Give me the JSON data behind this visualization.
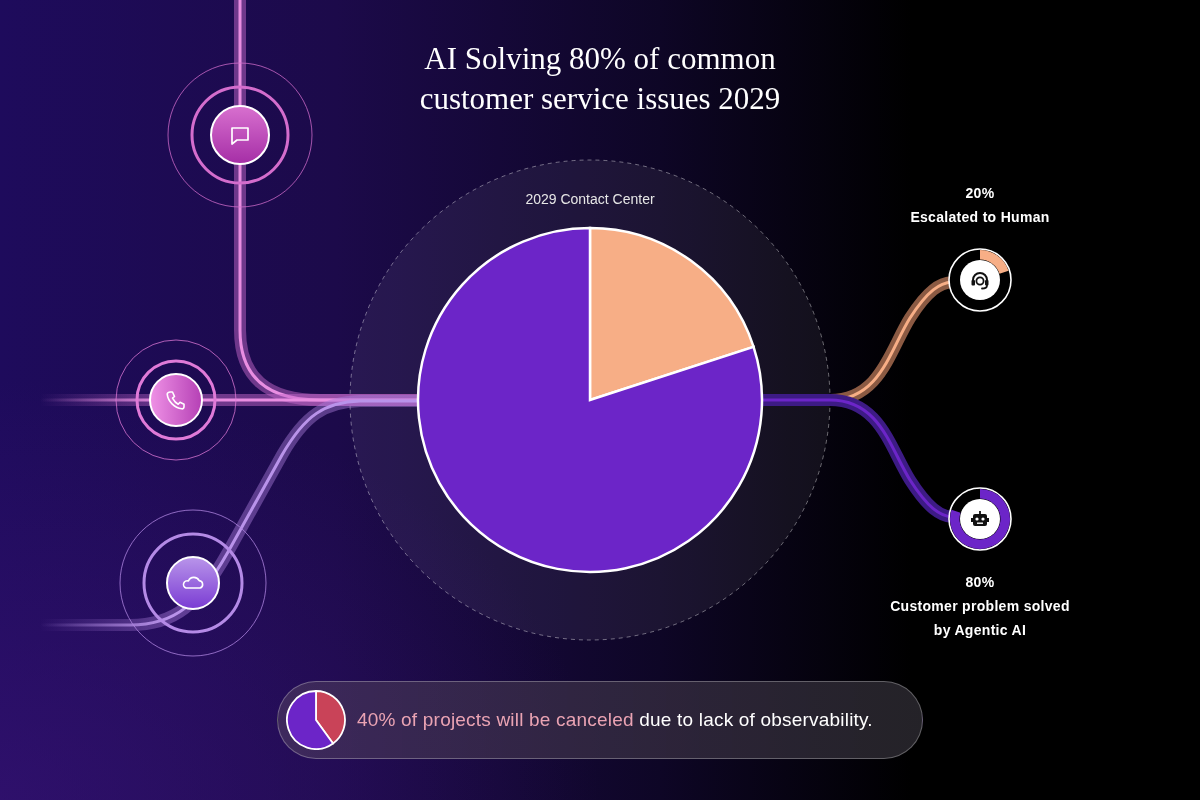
{
  "chart_data": [
    {
      "type": "pie",
      "title": "AI Solving 80% of common customer service issues 2029",
      "subtitle": "2029 Contact Center",
      "categories": [
        null,
        null
      ],
      "values": [
        20,
        80
      ],
      "colors": [
        "#f7ae86",
        "#6c25c8"
      ],
      "annotations": [
        "20%",
        "Escalated to Human",
        "80%",
        "Customer problem solved by Agentic AI"
      ]
    },
    {
      "type": "pie",
      "categories": [
        null,
        null
      ],
      "values": [
        40,
        60
      ],
      "colors": [
        "#c94358",
        "#6c25c8"
      ],
      "annotations": [
        "40% of projects will be canceled",
        "due to lack of observability."
      ]
    }
  ]
}
